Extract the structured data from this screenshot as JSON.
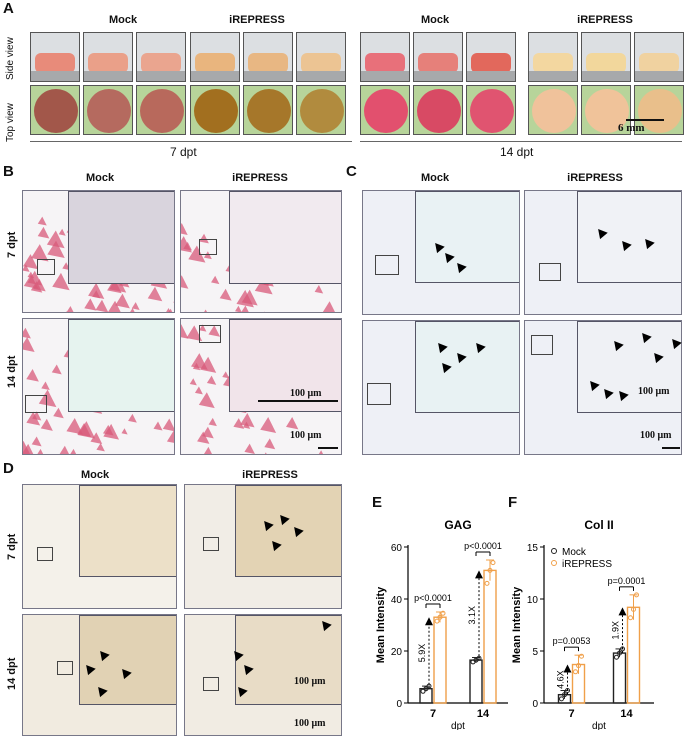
{
  "panels": {
    "A": {
      "label": "A",
      "groups": [
        "Mock",
        "iREPRESS",
        "Mock",
        "iREPRESS"
      ],
      "row_labels": [
        "Side view",
        "Top view"
      ],
      "timepoints": [
        "7 dpt",
        "14 dpt"
      ],
      "scale": "6 mm"
    },
    "B": {
      "label": "B",
      "groups": [
        "Mock",
        "iREPRESS"
      ],
      "rows": [
        "7 dpt",
        "14 dpt"
      ],
      "scale_inset": "100 μm",
      "scale_main": "100 μm"
    },
    "C": {
      "label": "C",
      "groups": [
        "Mock",
        "iREPRESS"
      ],
      "scale_inset": "100 μm",
      "scale_main": "100 μm"
    },
    "D": {
      "label": "D",
      "groups": [
        "Mock",
        "iREPRESS"
      ],
      "rows": [
        "7 dpt",
        "14 dpt"
      ],
      "scale_inset": "100 μm",
      "scale_main": "100 μm"
    },
    "E": {
      "label": "E"
    },
    "F": {
      "label": "F"
    }
  },
  "colors": {
    "mock": "#222222",
    "irepress": "#f0a04a",
    "pink_stain": "#d85a7a",
    "blue_stain": "#7fc7d0"
  },
  "chart_data": [
    {
      "type": "bar",
      "title": "GAG",
      "ylabel": "Mean Intensity",
      "xlabel": "dpt",
      "categories": [
        "7",
        "14"
      ],
      "ylim": [
        0,
        60
      ],
      "yticks": [
        0,
        20,
        40,
        60
      ],
      "series": [
        {
          "name": "Mock",
          "values": [
            5.5,
            16.5
          ],
          "errors": [
            1.0,
            1.0
          ],
          "points": [
            [
              4.5,
              5.5,
              6.5
            ],
            [
              15.8,
              16.5,
              17.2
            ]
          ]
        },
        {
          "name": "iREPRESS",
          "values": [
            33,
            51
          ],
          "errors": [
            2.0,
            4.0
          ],
          "points": [
            [
              31.5,
              33,
              34.5
            ],
            [
              46,
              51,
              54
            ]
          ]
        }
      ],
      "fold_labels": [
        "5.9X",
        "3.1X"
      ],
      "pvalues": [
        "p<0.0001",
        "p<0.0001"
      ]
    },
    {
      "type": "bar",
      "title": "Col II",
      "ylabel": "Mean Intensity",
      "xlabel": "dpt",
      "categories": [
        "7",
        "14"
      ],
      "ylim": [
        0,
        15
      ],
      "yticks": [
        0,
        5,
        10,
        15
      ],
      "legend": [
        "Mock",
        "iREPRESS"
      ],
      "series": [
        {
          "name": "Mock",
          "values": [
            0.8,
            4.8
          ],
          "errors": [
            0.4,
            0.4
          ],
          "points": [
            [
              0.4,
              0.8,
              1.2
            ],
            [
              4.4,
              4.8,
              5.2
            ]
          ]
        },
        {
          "name": "iREPRESS",
          "values": [
            3.7,
            9.2
          ],
          "errors": [
            0.9,
            1.2
          ],
          "points": [
            [
              3.0,
              3.6,
              4.5
            ],
            [
              8.2,
              9.0,
              10.4
            ]
          ]
        }
      ],
      "fold_labels": [
        "4.6X",
        "1.9X"
      ],
      "pvalues": [
        "p=0.0053",
        "p=0.0001"
      ]
    }
  ]
}
